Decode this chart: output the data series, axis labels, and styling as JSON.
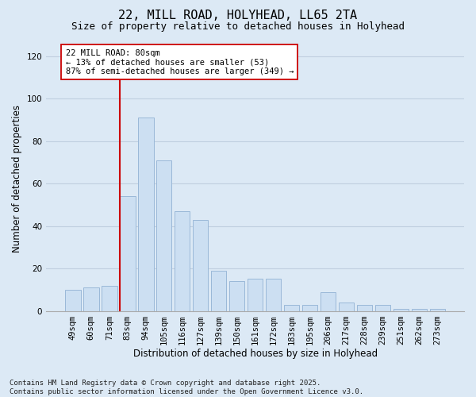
{
  "title_line1": "22, MILL ROAD, HOLYHEAD, LL65 2TA",
  "title_line2": "Size of property relative to detached houses in Holyhead",
  "xlabel": "Distribution of detached houses by size in Holyhead",
  "ylabel": "Number of detached properties",
  "categories": [
    "49sqm",
    "60sqm",
    "71sqm",
    "83sqm",
    "94sqm",
    "105sqm",
    "116sqm",
    "127sqm",
    "139sqm",
    "150sqm",
    "161sqm",
    "172sqm",
    "183sqm",
    "195sqm",
    "206sqm",
    "217sqm",
    "228sqm",
    "239sqm",
    "251sqm",
    "262sqm",
    "273sqm"
  ],
  "values": [
    10,
    11,
    12,
    54,
    91,
    71,
    47,
    43,
    19,
    14,
    15,
    15,
    3,
    3,
    9,
    4,
    3,
    3,
    1,
    1,
    1
  ],
  "bar_color": "#ccdff2",
  "bar_edge_color": "#9ab8d8",
  "vline_color": "#cc0000",
  "vline_bar_index": 3,
  "annotation_text": "22 MILL ROAD: 80sqm\n← 13% of detached houses are smaller (53)\n87% of semi-detached houses are larger (349) →",
  "annotation_box_color": "#ffffff",
  "annotation_box_edge_color": "#cc0000",
  "ylim": [
    0,
    125
  ],
  "yticks": [
    0,
    20,
    40,
    60,
    80,
    100,
    120
  ],
  "grid_color": "#c0cfe0",
  "background_color": "#dce9f5",
  "footer_text": "Contains HM Land Registry data © Crown copyright and database right 2025.\nContains public sector information licensed under the Open Government Licence v3.0.",
  "title_fontsize": 11,
  "subtitle_fontsize": 9,
  "axis_label_fontsize": 8.5,
  "tick_fontsize": 7.5,
  "annotation_fontsize": 7.5,
  "footer_fontsize": 6.5
}
